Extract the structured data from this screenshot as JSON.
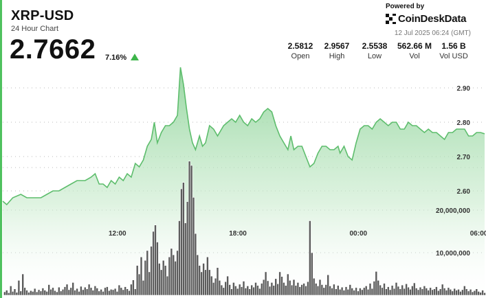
{
  "header": {
    "title": "XRP-USD",
    "subtitle": "24 Hour Chart",
    "price": "2.7662",
    "change": "7.16%",
    "change_direction_icon": "up-triangle-icon",
    "up_color": "#3db54a"
  },
  "branding": {
    "powered_by": "Powered by",
    "name": "CoinDeskData",
    "logo_icon": "coindesk-logo-icon",
    "timestamp": "12 Jul 2025 06:24 (GMT)"
  },
  "stats": [
    {
      "value": "2.5812",
      "label": "Open"
    },
    {
      "value": "2.9567",
      "label": "High"
    },
    {
      "value": "2.5538",
      "label": "Low"
    },
    {
      "value": "562.66 M",
      "label": "Vol"
    },
    {
      "value": "1.56 B",
      "label": "Vol USD"
    }
  ],
  "chart_data": {
    "type": "line",
    "line_color": "#5dbd6c",
    "area_fill": "gradient-green",
    "grid": "dotted-horizontal",
    "x_ticks": [
      {
        "label": "12:00",
        "x": 12
      },
      {
        "label": "18:00",
        "x": 18
      },
      {
        "label": "00:00",
        "x": 24
      },
      {
        "label": "06:00",
        "x": 30
      }
    ],
    "price_ticks": [
      "2.90",
      "2.80",
      "2.70",
      "2.60"
    ],
    "price_tick_values": [
      2.9,
      2.8,
      2.7,
      2.6
    ],
    "price_range": [
      2.55,
      2.98
    ],
    "volume_ticks": [
      "20,000,000",
      "10,000,000"
    ],
    "volume_tick_values": [
      20000000,
      10000000
    ],
    "volume_range": [
      0,
      38000000
    ],
    "x_range": [
      6.4,
      30.4
    ],
    "price_series": [
      [
        6.4,
        2.57
      ],
      [
        6.6,
        2.56
      ],
      [
        6.9,
        2.58
      ],
      [
        7.3,
        2.59
      ],
      [
        7.6,
        2.58
      ],
      [
        8.0,
        2.58
      ],
      [
        8.3,
        2.58
      ],
      [
        8.6,
        2.59
      ],
      [
        8.9,
        2.6
      ],
      [
        9.2,
        2.6
      ],
      [
        9.5,
        2.61
      ],
      [
        9.8,
        2.62
      ],
      [
        10.1,
        2.63
      ],
      [
        10.5,
        2.63
      ],
      [
        10.8,
        2.64
      ],
      [
        11.0,
        2.65
      ],
      [
        11.2,
        2.62
      ],
      [
        11.4,
        2.62
      ],
      [
        11.6,
        2.61
      ],
      [
        11.8,
        2.63
      ],
      [
        12.0,
        2.62
      ],
      [
        12.2,
        2.64
      ],
      [
        12.4,
        2.63
      ],
      [
        12.6,
        2.65
      ],
      [
        12.8,
        2.64
      ],
      [
        13.0,
        2.68
      ],
      [
        13.2,
        2.67
      ],
      [
        13.4,
        2.69
      ],
      [
        13.6,
        2.73
      ],
      [
        13.8,
        2.75
      ],
      [
        13.95,
        2.8
      ],
      [
        14.1,
        2.74
      ],
      [
        14.3,
        2.77
      ],
      [
        14.5,
        2.79
      ],
      [
        14.7,
        2.79
      ],
      [
        14.9,
        2.8
      ],
      [
        15.1,
        2.82
      ],
      [
        15.25,
        2.96
      ],
      [
        15.4,
        2.91
      ],
      [
        15.55,
        2.84
      ],
      [
        15.7,
        2.78
      ],
      [
        15.85,
        2.74
      ],
      [
        16.0,
        2.72
      ],
      [
        16.2,
        2.76
      ],
      [
        16.35,
        2.73
      ],
      [
        16.5,
        2.74
      ],
      [
        16.7,
        2.79
      ],
      [
        16.9,
        2.78
      ],
      [
        17.1,
        2.76
      ],
      [
        17.4,
        2.79
      ],
      [
        17.6,
        2.8
      ],
      [
        17.8,
        2.81
      ],
      [
        18.0,
        2.8
      ],
      [
        18.2,
        2.82
      ],
      [
        18.4,
        2.8
      ],
      [
        18.6,
        2.79
      ],
      [
        18.8,
        2.81
      ],
      [
        19.0,
        2.8
      ],
      [
        19.2,
        2.81
      ],
      [
        19.4,
        2.83
      ],
      [
        19.6,
        2.84
      ],
      [
        19.8,
        2.83
      ],
      [
        20.0,
        2.79
      ],
      [
        20.2,
        2.76
      ],
      [
        20.4,
        2.74
      ],
      [
        20.6,
        2.72
      ],
      [
        20.75,
        2.76
      ],
      [
        20.9,
        2.72
      ],
      [
        21.1,
        2.73
      ],
      [
        21.3,
        2.73
      ],
      [
        21.5,
        2.7
      ],
      [
        21.7,
        2.67
      ],
      [
        21.9,
        2.68
      ],
      [
        22.1,
        2.71
      ],
      [
        22.3,
        2.73
      ],
      [
        22.5,
        2.73
      ],
      [
        22.7,
        2.72
      ],
      [
        22.9,
        2.72
      ],
      [
        23.1,
        2.73
      ],
      [
        23.2,
        2.71
      ],
      [
        23.4,
        2.73
      ],
      [
        23.6,
        2.7
      ],
      [
        23.8,
        2.69
      ],
      [
        24.0,
        2.74
      ],
      [
        24.2,
        2.78
      ],
      [
        24.4,
        2.79
      ],
      [
        24.6,
        2.79
      ],
      [
        24.8,
        2.78
      ],
      [
        25.0,
        2.8
      ],
      [
        25.2,
        2.81
      ],
      [
        25.4,
        2.8
      ],
      [
        25.6,
        2.79
      ],
      [
        25.8,
        2.8
      ],
      [
        26.0,
        2.8
      ],
      [
        26.2,
        2.78
      ],
      [
        26.4,
        2.78
      ],
      [
        26.6,
        2.8
      ],
      [
        26.8,
        2.79
      ],
      [
        27.0,
        2.79
      ],
      [
        27.2,
        2.78
      ],
      [
        27.4,
        2.77
      ],
      [
        27.6,
        2.78
      ],
      [
        27.8,
        2.77
      ],
      [
        28.0,
        2.77
      ],
      [
        28.2,
        2.76
      ],
      [
        28.4,
        2.75
      ],
      [
        28.6,
        2.77
      ],
      [
        28.8,
        2.77
      ],
      [
        29.0,
        2.78
      ],
      [
        29.2,
        2.78
      ],
      [
        29.4,
        2.78
      ],
      [
        29.6,
        2.76
      ],
      [
        29.8,
        2.76
      ],
      [
        30.0,
        2.77
      ],
      [
        30.2,
        2.77
      ],
      [
        30.4,
        2.7662
      ]
    ],
    "volume_bars": [
      [
        6.5,
        800000
      ],
      [
        6.6,
        1200000
      ],
      [
        6.7,
        600000
      ],
      [
        6.8,
        2200000
      ],
      [
        6.9,
        900000
      ],
      [
        7.0,
        1500000
      ],
      [
        7.1,
        700000
      ],
      [
        7.2,
        3500000
      ],
      [
        7.3,
        1000000
      ],
      [
        7.4,
        5000000
      ],
      [
        7.5,
        1800000
      ],
      [
        7.6,
        1200000
      ],
      [
        7.7,
        700000
      ],
      [
        7.8,
        1100000
      ],
      [
        7.9,
        900000
      ],
      [
        8.0,
        1600000
      ],
      [
        8.1,
        800000
      ],
      [
        8.2,
        1300000
      ],
      [
        8.3,
        1000000
      ],
      [
        8.4,
        1700000
      ],
      [
        8.5,
        1200000
      ],
      [
        8.6,
        900000
      ],
      [
        8.7,
        2500000
      ],
      [
        8.8,
        1400000
      ],
      [
        8.9,
        1800000
      ],
      [
        9.0,
        1100000
      ],
      [
        9.1,
        800000
      ],
      [
        9.2,
        1900000
      ],
      [
        9.3,
        1000000
      ],
      [
        9.4,
        1400000
      ],
      [
        9.5,
        2000000
      ],
      [
        9.6,
        2600000
      ],
      [
        9.7,
        1300000
      ],
      [
        9.8,
        1800000
      ],
      [
        9.9,
        3000000
      ],
      [
        10.0,
        1200000
      ],
      [
        10.1,
        1600000
      ],
      [
        10.2,
        900000
      ],
      [
        10.3,
        2100000
      ],
      [
        10.4,
        1300000
      ],
      [
        10.5,
        1900000
      ],
      [
        10.6,
        1500000
      ],
      [
        10.7,
        2600000
      ],
      [
        10.8,
        1800000
      ],
      [
        10.9,
        1200000
      ],
      [
        11.0,
        2200000
      ],
      [
        11.1,
        1700000
      ],
      [
        11.2,
        1000000
      ],
      [
        11.3,
        1400000
      ],
      [
        11.4,
        900000
      ],
      [
        11.5,
        1800000
      ],
      [
        11.6,
        2000000
      ],
      [
        11.7,
        1100000
      ],
      [
        11.8,
        1400000
      ],
      [
        11.9,
        1300000
      ],
      [
        12.0,
        1600000
      ],
      [
        12.1,
        900000
      ],
      [
        12.2,
        2400000
      ],
      [
        12.3,
        1800000
      ],
      [
        12.4,
        1300000
      ],
      [
        12.5,
        2000000
      ],
      [
        12.6,
        1500000
      ],
      [
        12.7,
        1100000
      ],
      [
        12.8,
        2600000
      ],
      [
        12.9,
        3600000
      ],
      [
        13.0,
        1500000
      ],
      [
        13.1,
        7000000
      ],
      [
        13.2,
        5000000
      ],
      [
        13.3,
        9000000
      ],
      [
        13.4,
        3500000
      ],
      [
        13.5,
        8200000
      ],
      [
        13.6,
        10500000
      ],
      [
        13.7,
        5500000
      ],
      [
        13.8,
        11500000
      ],
      [
        13.9,
        15000000
      ],
      [
        14.0,
        16500000
      ],
      [
        14.1,
        12500000
      ],
      [
        14.2,
        7500000
      ],
      [
        14.3,
        6000000
      ],
      [
        14.4,
        8200000
      ],
      [
        14.5,
        7000000
      ],
      [
        14.6,
        4500000
      ],
      [
        14.7,
        9000000
      ],
      [
        14.8,
        11000000
      ],
      [
        14.9,
        9500000
      ],
      [
        15.0,
        8000000
      ],
      [
        15.1,
        10500000
      ],
      [
        15.2,
        17500000
      ],
      [
        15.3,
        25000000
      ],
      [
        15.4,
        26500000
      ],
      [
        15.5,
        17000000
      ],
      [
        15.6,
        22000000
      ],
      [
        15.7,
        31500000
      ],
      [
        15.8,
        30500000
      ],
      [
        15.9,
        23000000
      ],
      [
        16.0,
        14500000
      ],
      [
        16.1,
        9500000
      ],
      [
        16.2,
        7000000
      ],
      [
        16.3,
        5500000
      ],
      [
        16.4,
        7500000
      ],
      [
        16.5,
        6000000
      ],
      [
        16.6,
        9000000
      ],
      [
        16.7,
        6000000
      ],
      [
        16.8,
        4500000
      ],
      [
        16.9,
        3000000
      ],
      [
        17.0,
        4000000
      ],
      [
        17.1,
        6500000
      ],
      [
        17.2,
        3500000
      ],
      [
        17.3,
        2400000
      ],
      [
        17.4,
        1800000
      ],
      [
        17.5,
        3200000
      ],
      [
        17.6,
        4500000
      ],
      [
        17.7,
        2500000
      ],
      [
        17.8,
        1500000
      ],
      [
        17.9,
        3000000
      ],
      [
        18.0,
        2200000
      ],
      [
        18.1,
        1600000
      ],
      [
        18.2,
        2600000
      ],
      [
        18.3,
        2000000
      ],
      [
        18.4,
        3300000
      ],
      [
        18.5,
        1700000
      ],
      [
        18.6,
        2200000
      ],
      [
        18.7,
        1500000
      ],
      [
        18.8,
        2400000
      ],
      [
        18.9,
        1900000
      ],
      [
        19.0,
        3000000
      ],
      [
        19.1,
        2300000
      ],
      [
        19.2,
        1600000
      ],
      [
        19.3,
        2800000
      ],
      [
        19.4,
        3700000
      ],
      [
        19.5,
        5500000
      ],
      [
        19.6,
        3400000
      ],
      [
        19.7,
        2100000
      ],
      [
        19.8,
        3000000
      ],
      [
        19.9,
        2300000
      ],
      [
        20.0,
        3900000
      ],
      [
        20.1,
        2700000
      ],
      [
        20.2,
        5500000
      ],
      [
        20.3,
        4400000
      ],
      [
        20.4,
        3000000
      ],
      [
        20.5,
        2300000
      ],
      [
        20.6,
        5000000
      ],
      [
        20.7,
        3500000
      ],
      [
        20.8,
        2400000
      ],
      [
        20.9,
        3700000
      ],
      [
        21.0,
        2300000
      ],
      [
        21.1,
        3000000
      ],
      [
        21.2,
        2000000
      ],
      [
        21.3,
        2500000
      ],
      [
        21.4,
        2800000
      ],
      [
        21.5,
        2200000
      ],
      [
        21.6,
        3200000
      ],
      [
        21.7,
        17500000
      ],
      [
        21.8,
        10000000
      ],
      [
        21.9,
        4000000
      ],
      [
        22.0,
        2800000
      ],
      [
        22.1,
        2200000
      ],
      [
        22.2,
        3700000
      ],
      [
        22.3,
        2500000
      ],
      [
        22.4,
        1800000
      ],
      [
        22.5,
        2500000
      ],
      [
        22.6,
        4800000
      ],
      [
        22.7,
        2200000
      ],
      [
        22.8,
        1700000
      ],
      [
        22.9,
        2600000
      ],
      [
        23.0,
        1500000
      ],
      [
        23.1,
        2300000
      ],
      [
        23.2,
        1400000
      ],
      [
        23.3,
        1900000
      ],
      [
        23.4,
        1200000
      ],
      [
        23.5,
        2000000
      ],
      [
        23.6,
        1400000
      ],
      [
        23.7,
        2500000
      ],
      [
        23.8,
        1700000
      ],
      [
        23.9,
        1200000
      ],
      [
        24.0,
        1800000
      ],
      [
        24.1,
        1000000
      ],
      [
        24.2,
        1700000
      ],
      [
        24.3,
        1300000
      ],
      [
        24.4,
        1800000
      ],
      [
        24.5,
        2200000
      ],
      [
        24.6,
        1400000
      ],
      [
        24.7,
        2800000
      ],
      [
        24.8,
        1600000
      ],
      [
        24.9,
        3300000
      ],
      [
        25.0,
        5600000
      ],
      [
        25.1,
        3500000
      ],
      [
        25.2,
        2400000
      ],
      [
        25.3,
        1800000
      ],
      [
        25.4,
        2800000
      ],
      [
        25.5,
        1500000
      ],
      [
        25.6,
        2000000
      ],
      [
        25.7,
        1300000
      ],
      [
        25.8,
        2300000
      ],
      [
        25.9,
        1600000
      ],
      [
        26.0,
        3000000
      ],
      [
        26.1,
        2100000
      ],
      [
        26.2,
        1500000
      ],
      [
        26.3,
        2400000
      ],
      [
        26.4,
        1600000
      ],
      [
        26.5,
        2700000
      ],
      [
        26.6,
        1900000
      ],
      [
        26.7,
        1400000
      ],
      [
        26.8,
        2200000
      ],
      [
        26.9,
        2900000
      ],
      [
        27.0,
        1700000
      ],
      [
        27.1,
        1300000
      ],
      [
        27.2,
        1900000
      ],
      [
        27.3,
        1500000
      ],
      [
        27.4,
        2200000
      ],
      [
        27.5,
        1700000
      ],
      [
        27.6,
        1200000
      ],
      [
        27.7,
        1800000
      ],
      [
        27.8,
        1300000
      ],
      [
        27.9,
        1500000
      ],
      [
        28.0,
        2000000
      ],
      [
        28.1,
        1100000
      ],
      [
        28.2,
        1500000
      ],
      [
        28.3,
        2600000
      ],
      [
        28.4,
        1700000
      ],
      [
        28.5,
        1200000
      ],
      [
        28.6,
        1800000
      ],
      [
        28.7,
        1400000
      ],
      [
        28.8,
        1000000
      ],
      [
        28.9,
        1600000
      ],
      [
        29.0,
        1200000
      ],
      [
        29.1,
        1400000
      ],
      [
        29.2,
        900000
      ],
      [
        29.3,
        1300000
      ],
      [
        29.4,
        2200000
      ],
      [
        29.5,
        1500000
      ],
      [
        29.6,
        1000000
      ],
      [
        29.7,
        1400000
      ],
      [
        29.8,
        800000
      ],
      [
        29.9,
        1100000
      ],
      [
        30.0,
        1500000
      ],
      [
        30.1,
        900000
      ],
      [
        30.2,
        700000
      ],
      [
        30.3,
        1200000
      ],
      [
        30.4,
        600000
      ]
    ]
  }
}
